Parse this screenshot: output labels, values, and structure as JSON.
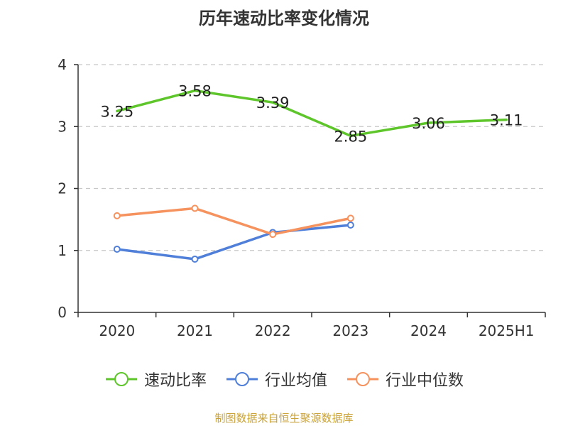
{
  "chart_data": {
    "type": "line",
    "title": "历年速动比率变化情况",
    "categories": [
      "2020",
      "2021",
      "2022",
      "2023",
      "2024",
      "2025H1"
    ],
    "ylim": [
      0,
      4
    ],
    "y_ticks": [
      0,
      1,
      2,
      3,
      4
    ],
    "grid": true,
    "legend_position": "bottom",
    "series": [
      {
        "name": "速动比率",
        "color": "#5ec62b",
        "values": [
          3.25,
          3.58,
          3.39,
          2.85,
          3.06,
          3.11
        ],
        "labels": [
          "3.25",
          "3.58",
          "3.39",
          "2.85",
          "3.06",
          "3.11"
        ],
        "show_markers": false,
        "show_labels": true
      },
      {
        "name": "行业均值",
        "color": "#4f7fd8",
        "values": [
          1.02,
          0.86,
          1.29,
          1.41,
          null,
          null
        ],
        "show_markers": true,
        "show_labels": false
      },
      {
        "name": "行业中位数",
        "color": "#f5925e",
        "values": [
          1.56,
          1.68,
          1.26,
          1.52,
          null,
          null
        ],
        "show_markers": true,
        "show_labels": false
      }
    ]
  },
  "source_note": "制图数据来自恒生聚源数据库"
}
